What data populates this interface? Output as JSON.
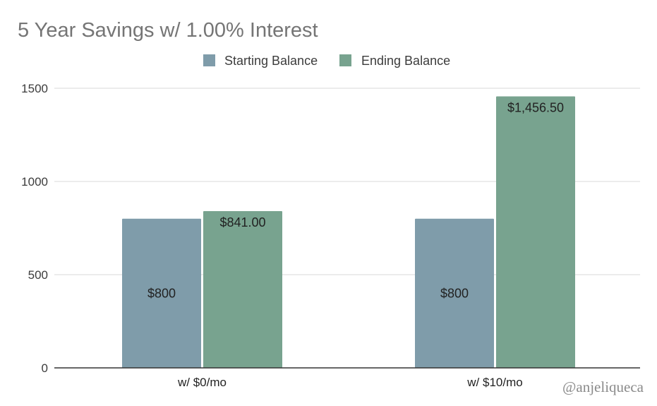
{
  "watermark": "@anjeliqueca",
  "colors": {
    "starting": "#7f9caa",
    "ending": "#78a38f",
    "grid": "#d9d9d9",
    "axis": "#333333"
  },
  "chart_data": {
    "type": "bar",
    "title": "5 Year Savings w/ 1.00% Interest",
    "categories": [
      "w/ $0/mo",
      "w/ $10/mo"
    ],
    "series": [
      {
        "name": "Starting Balance",
        "values": [
          800,
          800
        ],
        "labels": [
          "$800",
          "$800"
        ]
      },
      {
        "name": "Ending Balance",
        "values": [
          841.0,
          1456.5
        ],
        "labels": [
          "$841.00",
          "$1,456.50"
        ]
      }
    ],
    "yticks": [
      0,
      500,
      1000,
      1500
    ],
    "ylim": [
      0,
      1500
    ],
    "grid": true,
    "legend": "top-center"
  }
}
